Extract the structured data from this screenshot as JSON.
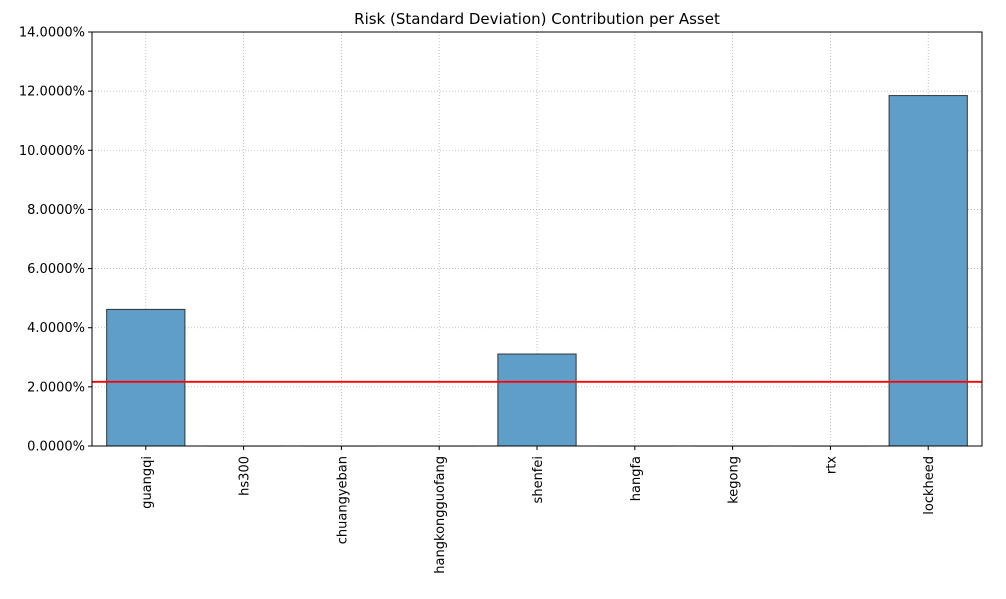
{
  "chart_data": {
    "type": "bar",
    "title": "Risk (Standard Deviation) Contribution per Asset",
    "xlabel": "",
    "ylabel": "",
    "categories": [
      "guangqi",
      "hs300",
      "chuangyeban",
      "hangkongguofang",
      "shenfei",
      "hangfa",
      "kegong",
      "rtx",
      "lockheed"
    ],
    "values": [
      4.62,
      0,
      0,
      0,
      3.11,
      0,
      0,
      0,
      11.85
    ],
    "value_unit": "percent",
    "ylim": [
      0,
      14
    ],
    "yticks": [
      0,
      2,
      4,
      6,
      8,
      10,
      12,
      14
    ],
    "ytick_labels": [
      "0.0000%",
      "2.0000%",
      "4.0000%",
      "6.0000%",
      "8.0000%",
      "10.0000%",
      "12.0000%",
      "14.0000%"
    ],
    "reference_line": {
      "value": 2.17,
      "color": "#ff0000"
    },
    "bar_color": "#5f9ec9",
    "bar_edge_color": "#333333",
    "grid": true,
    "legend": "none"
  }
}
